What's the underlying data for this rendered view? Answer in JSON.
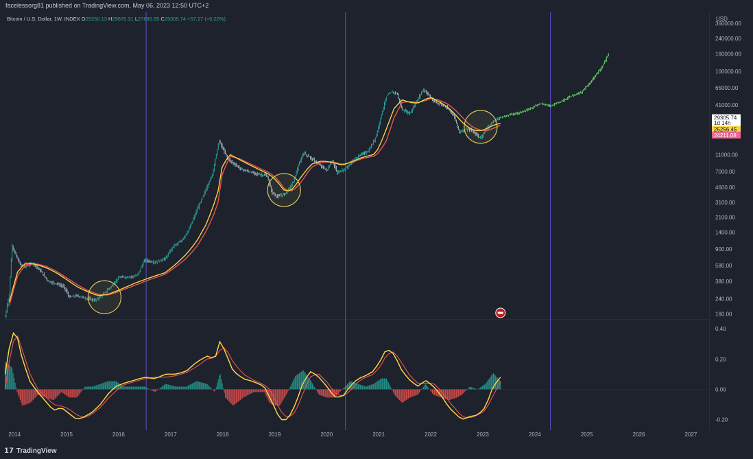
{
  "header": {
    "published": "facelessorg81 published on TradingView.com, May 06, 2023 12:50 UTC+2"
  },
  "legend": {
    "symbol": "Bitcoin / U.S. Dollar, 1W, INDEX",
    "open_label": "O",
    "open": "29250.13",
    "high_label": "H",
    "high": "29870.31",
    "low_label": "L",
    "low": "27665.95",
    "close_label": "C",
    "close": "29305.74",
    "change": "+57.27 (+0.20%)"
  },
  "footer": {
    "brand": "TradingView"
  },
  "colors": {
    "background": "#1e222d",
    "candle_up": "#26a69a",
    "candle_down": "#9fb4c4",
    "projection": "#5dbb63",
    "ma_fast": "#f5d547",
    "ma_slow": "#ef5350",
    "vertical_line": "#5a50c8",
    "circle": "#d8c85a",
    "hist_pos": "#26a69a",
    "hist_neg": "#ef5350"
  },
  "chart_data": [
    {
      "type": "line",
      "scale": "log",
      "y_axis_unit": "USD",
      "y_ticks": [
        160,
        240,
        380,
        580,
        900,
        1400,
        2100,
        3100,
        4600,
        7000,
        11000,
        41000,
        65000,
        100000,
        160000,
        240000,
        360000
      ],
      "y_tick_labels": [
        "160.00",
        "240.00",
        "380.00",
        "580.00",
        "900.00",
        "1400.00",
        "2100.00",
        "3100.00",
        "4600.00",
        "7000.00",
        "11000.00",
        "41000.00",
        "65000.00",
        "100000.00",
        "160000.00",
        "240000.00",
        "360000.00"
      ],
      "x_ticks": [
        "2014",
        "2015",
        "2016",
        "2017",
        "2018",
        "2019",
        "2020",
        "2021",
        "2022",
        "2023",
        "2024",
        "2025",
        "2026",
        "2027"
      ],
      "xlim": [
        2013.8,
        2027.35
      ],
      "ylim": [
        140,
        480000
      ],
      "vertical_lines_year": [
        2016.53,
        2020.36,
        2024.3
      ],
      "highlight_circles": [
        {
          "x": 2015.73,
          "y": 250
        },
        {
          "x": 2019.18,
          "y": 4300
        },
        {
          "x": 2022.96,
          "y": 23000
        }
      ],
      "price_labels": [
        {
          "value": "29305.74",
          "y": 29305.74,
          "bg": "#ffffff",
          "fg": "#131722"
        },
        {
          "value": "1d 14h",
          "y": 25500,
          "bg": "#ffffff",
          "fg": "#131722"
        },
        {
          "value": "25256.45",
          "y": 21500,
          "bg": "#f5d547",
          "fg": "#131722"
        },
        {
          "value": "24211.08",
          "y": 18500,
          "bg": "#f06292",
          "fg": "#ffffff"
        }
      ],
      "series": [
        {
          "kind": "price",
          "x": [
            2013.82,
            2013.9,
            2013.95,
            2014.0,
            2014.1,
            2014.2,
            2014.35,
            2014.5,
            2014.65,
            2014.8,
            2014.95,
            2015.05,
            2015.2,
            2015.4,
            2015.55,
            2015.7,
            2015.85,
            2016.0,
            2016.2,
            2016.35,
            2016.5,
            2016.7,
            2016.9,
            2017.05,
            2017.2,
            2017.35,
            2017.5,
            2017.65,
            2017.8,
            2017.93,
            2018.0,
            2018.1,
            2018.2,
            2018.35,
            2018.5,
            2018.7,
            2018.85,
            2018.95,
            2019.05,
            2019.2,
            2019.35,
            2019.45,
            2019.55,
            2019.7,
            2019.85,
            2020.0,
            2020.1,
            2020.2,
            2020.35,
            2020.5,
            2020.65,
            2020.8,
            2020.95,
            2021.05,
            2021.15,
            2021.25,
            2021.35,
            2021.45,
            2021.6,
            2021.75,
            2021.85,
            2021.95,
            2022.05,
            2022.2,
            2022.35,
            2022.45,
            2022.55,
            2022.7,
            2022.85,
            2022.95,
            2023.1,
            2023.25,
            2023.34
          ],
          "y": [
            150,
            280,
            1000,
            820,
            600,
            560,
            620,
            500,
            380,
            360,
            330,
            250,
            260,
            240,
            230,
            270,
            330,
            420,
            430,
            440,
            670,
            630,
            700,
            970,
            1100,
            1500,
            2500,
            4000,
            6500,
            16000,
            13000,
            9800,
            8800,
            7500,
            7000,
            6500,
            6300,
            4000,
            3600,
            3900,
            5200,
            8000,
            11500,
            10000,
            8500,
            7200,
            9500,
            6800,
            7500,
            9300,
            11000,
            12000,
            18000,
            32000,
            52000,
            58000,
            56000,
            36000,
            33000,
            48000,
            62000,
            55000,
            45000,
            42000,
            37000,
            30000,
            20000,
            22000,
            19500,
            17000,
            23000,
            28000,
            29305
          ]
        },
        {
          "kind": "projection",
          "x": [
            2023.34,
            2023.5,
            2023.7,
            2023.9,
            2024.1,
            2024.3,
            2024.5,
            2024.7,
            2024.9,
            2025.1,
            2025.3,
            2025.43
          ],
          "y": [
            29305,
            31500,
            33500,
            37000,
            43000,
            40000,
            45000,
            52000,
            58000,
            80000,
            115000,
            165000
          ]
        },
        {
          "kind": "ma_slow",
          "x": [
            2013.9,
            2014.05,
            2014.2,
            2014.4,
            2014.6,
            2014.8,
            2015.0,
            2015.2,
            2015.4,
            2015.6,
            2015.8,
            2016.0,
            2016.3,
            2016.6,
            2016.9,
            2017.1,
            2017.3,
            2017.5,
            2017.7,
            2017.9,
            2018.0,
            2018.15,
            2018.3,
            2018.5,
            2018.7,
            2018.9,
            2019.05,
            2019.2,
            2019.35,
            2019.5,
            2019.7,
            2019.9,
            2020.1,
            2020.3,
            2020.5,
            2020.7,
            2020.9,
            2021.0,
            2021.15,
            2021.3,
            2021.45,
            2021.6,
            2021.75,
            2021.9,
            2022.0,
            2022.15,
            2022.3,
            2022.45,
            2022.6,
            2022.75,
            2022.9,
            2023.05,
            2023.2,
            2023.34
          ],
          "y": [
            200,
            430,
            590,
            610,
            570,
            500,
            420,
            350,
            300,
            270,
            265,
            290,
            340,
            400,
            460,
            560,
            700,
            950,
            1500,
            2800,
            7000,
            10500,
            10000,
            8800,
            7700,
            6800,
            5800,
            4300,
            4200,
            5200,
            7800,
            9000,
            9100,
            8500,
            9000,
            10000,
            10500,
            11500,
            16000,
            30000,
            44000,
            45000,
            44000,
            46000,
            49000,
            47000,
            43000,
            37000,
            30000,
            24000,
            21500,
            20500,
            22000,
            24000
          ]
        },
        {
          "kind": "ma_fast",
          "x": [
            2013.9,
            2014.05,
            2014.2,
            2014.4,
            2014.6,
            2014.8,
            2015.0,
            2015.2,
            2015.4,
            2015.6,
            2015.8,
            2016.0,
            2016.3,
            2016.6,
            2016.9,
            2017.1,
            2017.3,
            2017.5,
            2017.7,
            2017.9,
            2018.0,
            2018.15,
            2018.3,
            2018.5,
            2018.7,
            2018.9,
            2019.05,
            2019.2,
            2019.35,
            2019.5,
            2019.7,
            2019.9,
            2020.1,
            2020.3,
            2020.5,
            2020.7,
            2020.9,
            2021.0,
            2021.15,
            2021.3,
            2021.45,
            2021.6,
            2021.75,
            2021.9,
            2022.0,
            2022.15,
            2022.3,
            2022.45,
            2022.6,
            2022.75,
            2022.9,
            2023.05,
            2023.2,
            2023.34
          ],
          "y": [
            220,
            480,
            620,
            600,
            550,
            480,
            400,
            330,
            290,
            260,
            270,
            300,
            360,
            420,
            480,
            600,
            780,
            1100,
            1800,
            3800,
            8500,
            11000,
            9800,
            8500,
            7400,
            6500,
            5400,
            4100,
            4400,
            6000,
            8500,
            9300,
            9000,
            8300,
            9200,
            10300,
            11000,
            13000,
            22000,
            38000,
            47000,
            44000,
            43000,
            48000,
            50000,
            45000,
            40000,
            33000,
            26000,
            22000,
            20500,
            21500,
            24000,
            25256
          ]
        }
      ]
    },
    {
      "type": "bar",
      "panel": "oscillator",
      "y_ticks": [
        -0.2,
        0.0,
        0.2,
        0.4
      ],
      "y_tick_labels": [
        "-0.20",
        "0.00",
        "0.20",
        "0.40"
      ],
      "ylim": [
        -0.27,
        0.46
      ],
      "series": [
        {
          "kind": "signal_fast",
          "x": [
            2013.82,
            2013.95,
            2014.05,
            2014.15,
            2014.3,
            2014.45,
            2014.6,
            2014.75,
            2014.9,
            2015.05,
            2015.2,
            2015.35,
            2015.5,
            2015.65,
            2015.8,
            2015.95,
            2016.1,
            2016.3,
            2016.5,
            2016.7,
            2016.9,
            2017.1,
            2017.3,
            2017.5,
            2017.7,
            2017.85,
            2017.95,
            2018.05,
            2018.2,
            2018.4,
            2018.6,
            2018.8,
            2018.9,
            2019.0,
            2019.1,
            2019.25,
            2019.4,
            2019.55,
            2019.7,
            2019.85,
            2020.0,
            2020.15,
            2020.3,
            2020.45,
            2020.6,
            2020.75,
            2020.9,
            2021.05,
            2021.15,
            2021.3,
            2021.45,
            2021.6,
            2021.75,
            2021.9,
            2022.05,
            2022.2,
            2022.35,
            2022.5,
            2022.6,
            2022.75,
            2022.9,
            2023.05,
            2023.2,
            2023.34
          ],
          "y": [
            0.1,
            0.38,
            0.35,
            0.2,
            0.05,
            -0.02,
            -0.08,
            -0.14,
            -0.12,
            -0.16,
            -0.2,
            -0.18,
            -0.15,
            -0.1,
            -0.03,
            0.02,
            0.04,
            0.06,
            0.08,
            0.07,
            0.1,
            0.1,
            0.12,
            0.18,
            0.22,
            0.2,
            0.32,
            0.25,
            0.12,
            0.07,
            0.05,
            0.02,
            -0.05,
            -0.12,
            -0.2,
            -0.2,
            -0.1,
            0.05,
            0.12,
            0.08,
            0.02,
            -0.05,
            -0.05,
            0.02,
            0.07,
            0.09,
            0.12,
            0.2,
            0.27,
            0.23,
            0.12,
            0.06,
            0.02,
            0.06,
            0.02,
            -0.04,
            -0.12,
            -0.17,
            -0.2,
            -0.18,
            -0.17,
            -0.12,
            0.02,
            0.08
          ]
        },
        {
          "kind": "signal_slow",
          "x": [
            2013.82,
            2013.95,
            2014.05,
            2014.15,
            2014.3,
            2014.45,
            2014.6,
            2014.75,
            2014.9,
            2015.05,
            2015.2,
            2015.35,
            2015.5,
            2015.65,
            2015.8,
            2015.95,
            2016.1,
            2016.3,
            2016.5,
            2016.7,
            2016.9,
            2017.1,
            2017.3,
            2017.5,
            2017.7,
            2017.85,
            2017.95,
            2018.05,
            2018.2,
            2018.4,
            2018.6,
            2018.8,
            2018.9,
            2019.0,
            2019.1,
            2019.25,
            2019.4,
            2019.55,
            2019.7,
            2019.85,
            2020.0,
            2020.15,
            2020.3,
            2020.45,
            2020.6,
            2020.75,
            2020.9,
            2021.05,
            2021.15,
            2021.3,
            2021.45,
            2021.6,
            2021.75,
            2021.9,
            2022.05,
            2022.2,
            2022.35,
            2022.5,
            2022.6,
            2022.75,
            2022.9,
            2023.05,
            2023.2,
            2023.34
          ],
          "y": [
            0.0,
            0.3,
            0.36,
            0.26,
            0.1,
            0.0,
            -0.05,
            -0.1,
            -0.11,
            -0.13,
            -0.17,
            -0.19,
            -0.16,
            -0.12,
            -0.06,
            -0.01,
            0.03,
            0.05,
            0.07,
            0.08,
            0.08,
            0.09,
            0.11,
            0.15,
            0.2,
            0.21,
            0.26,
            0.28,
            0.18,
            0.1,
            0.06,
            0.03,
            0.0,
            -0.06,
            -0.14,
            -0.19,
            -0.15,
            -0.02,
            0.09,
            0.1,
            0.05,
            -0.02,
            -0.05,
            -0.01,
            0.05,
            0.08,
            0.1,
            0.16,
            0.23,
            0.25,
            0.17,
            0.09,
            0.04,
            0.04,
            0.04,
            -0.01,
            -0.08,
            -0.14,
            -0.18,
            -0.19,
            -0.17,
            -0.14,
            -0.04,
            0.05
          ]
        }
      ]
    }
  ]
}
